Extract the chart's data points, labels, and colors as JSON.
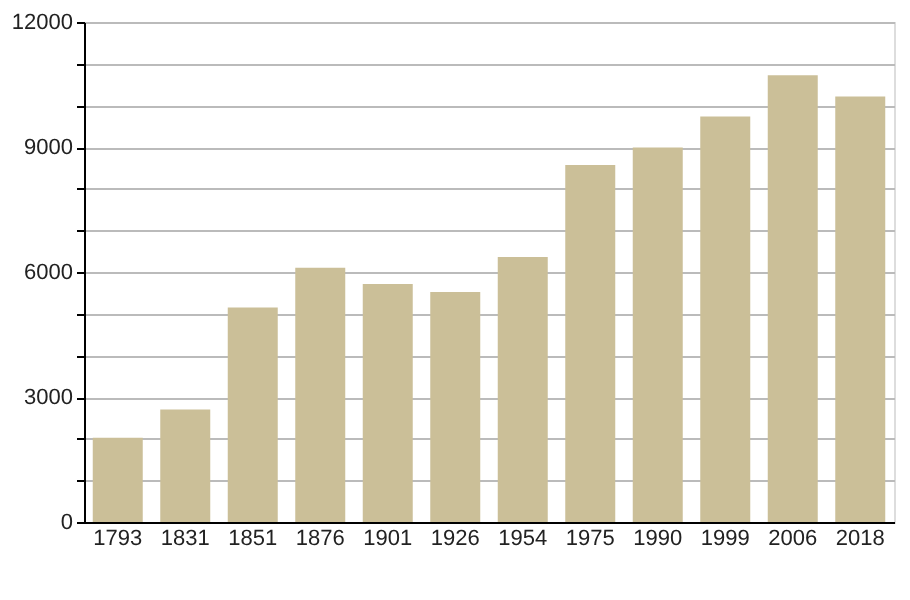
{
  "chart_data": {
    "type": "bar",
    "categories": [
      "1793",
      "1831",
      "1851",
      "1876",
      "1901",
      "1926",
      "1954",
      "1975",
      "1990",
      "1999",
      "2006",
      "2018"
    ],
    "values": [
      2020,
      2700,
      5150,
      6100,
      5710,
      5520,
      6360,
      8570,
      8990,
      9730,
      10720,
      10210
    ],
    "color": "#cbbf98",
    "ylim": [
      0,
      12000
    ],
    "yticks": [
      0,
      {
        "value": 1000,
        "label": null
      },
      {
        "value": 2000,
        "label": null
      },
      3000,
      {
        "value": 4000,
        "label": null
      },
      {
        "value": 5000,
        "label": null
      },
      6000,
      {
        "value": 7000,
        "label": null
      },
      {
        "value": 8000,
        "label": null
      },
      9000,
      {
        "value": 10000,
        "label": null
      },
      {
        "value": 11000,
        "label": null
      },
      12000
    ],
    "grid": "y"
  }
}
